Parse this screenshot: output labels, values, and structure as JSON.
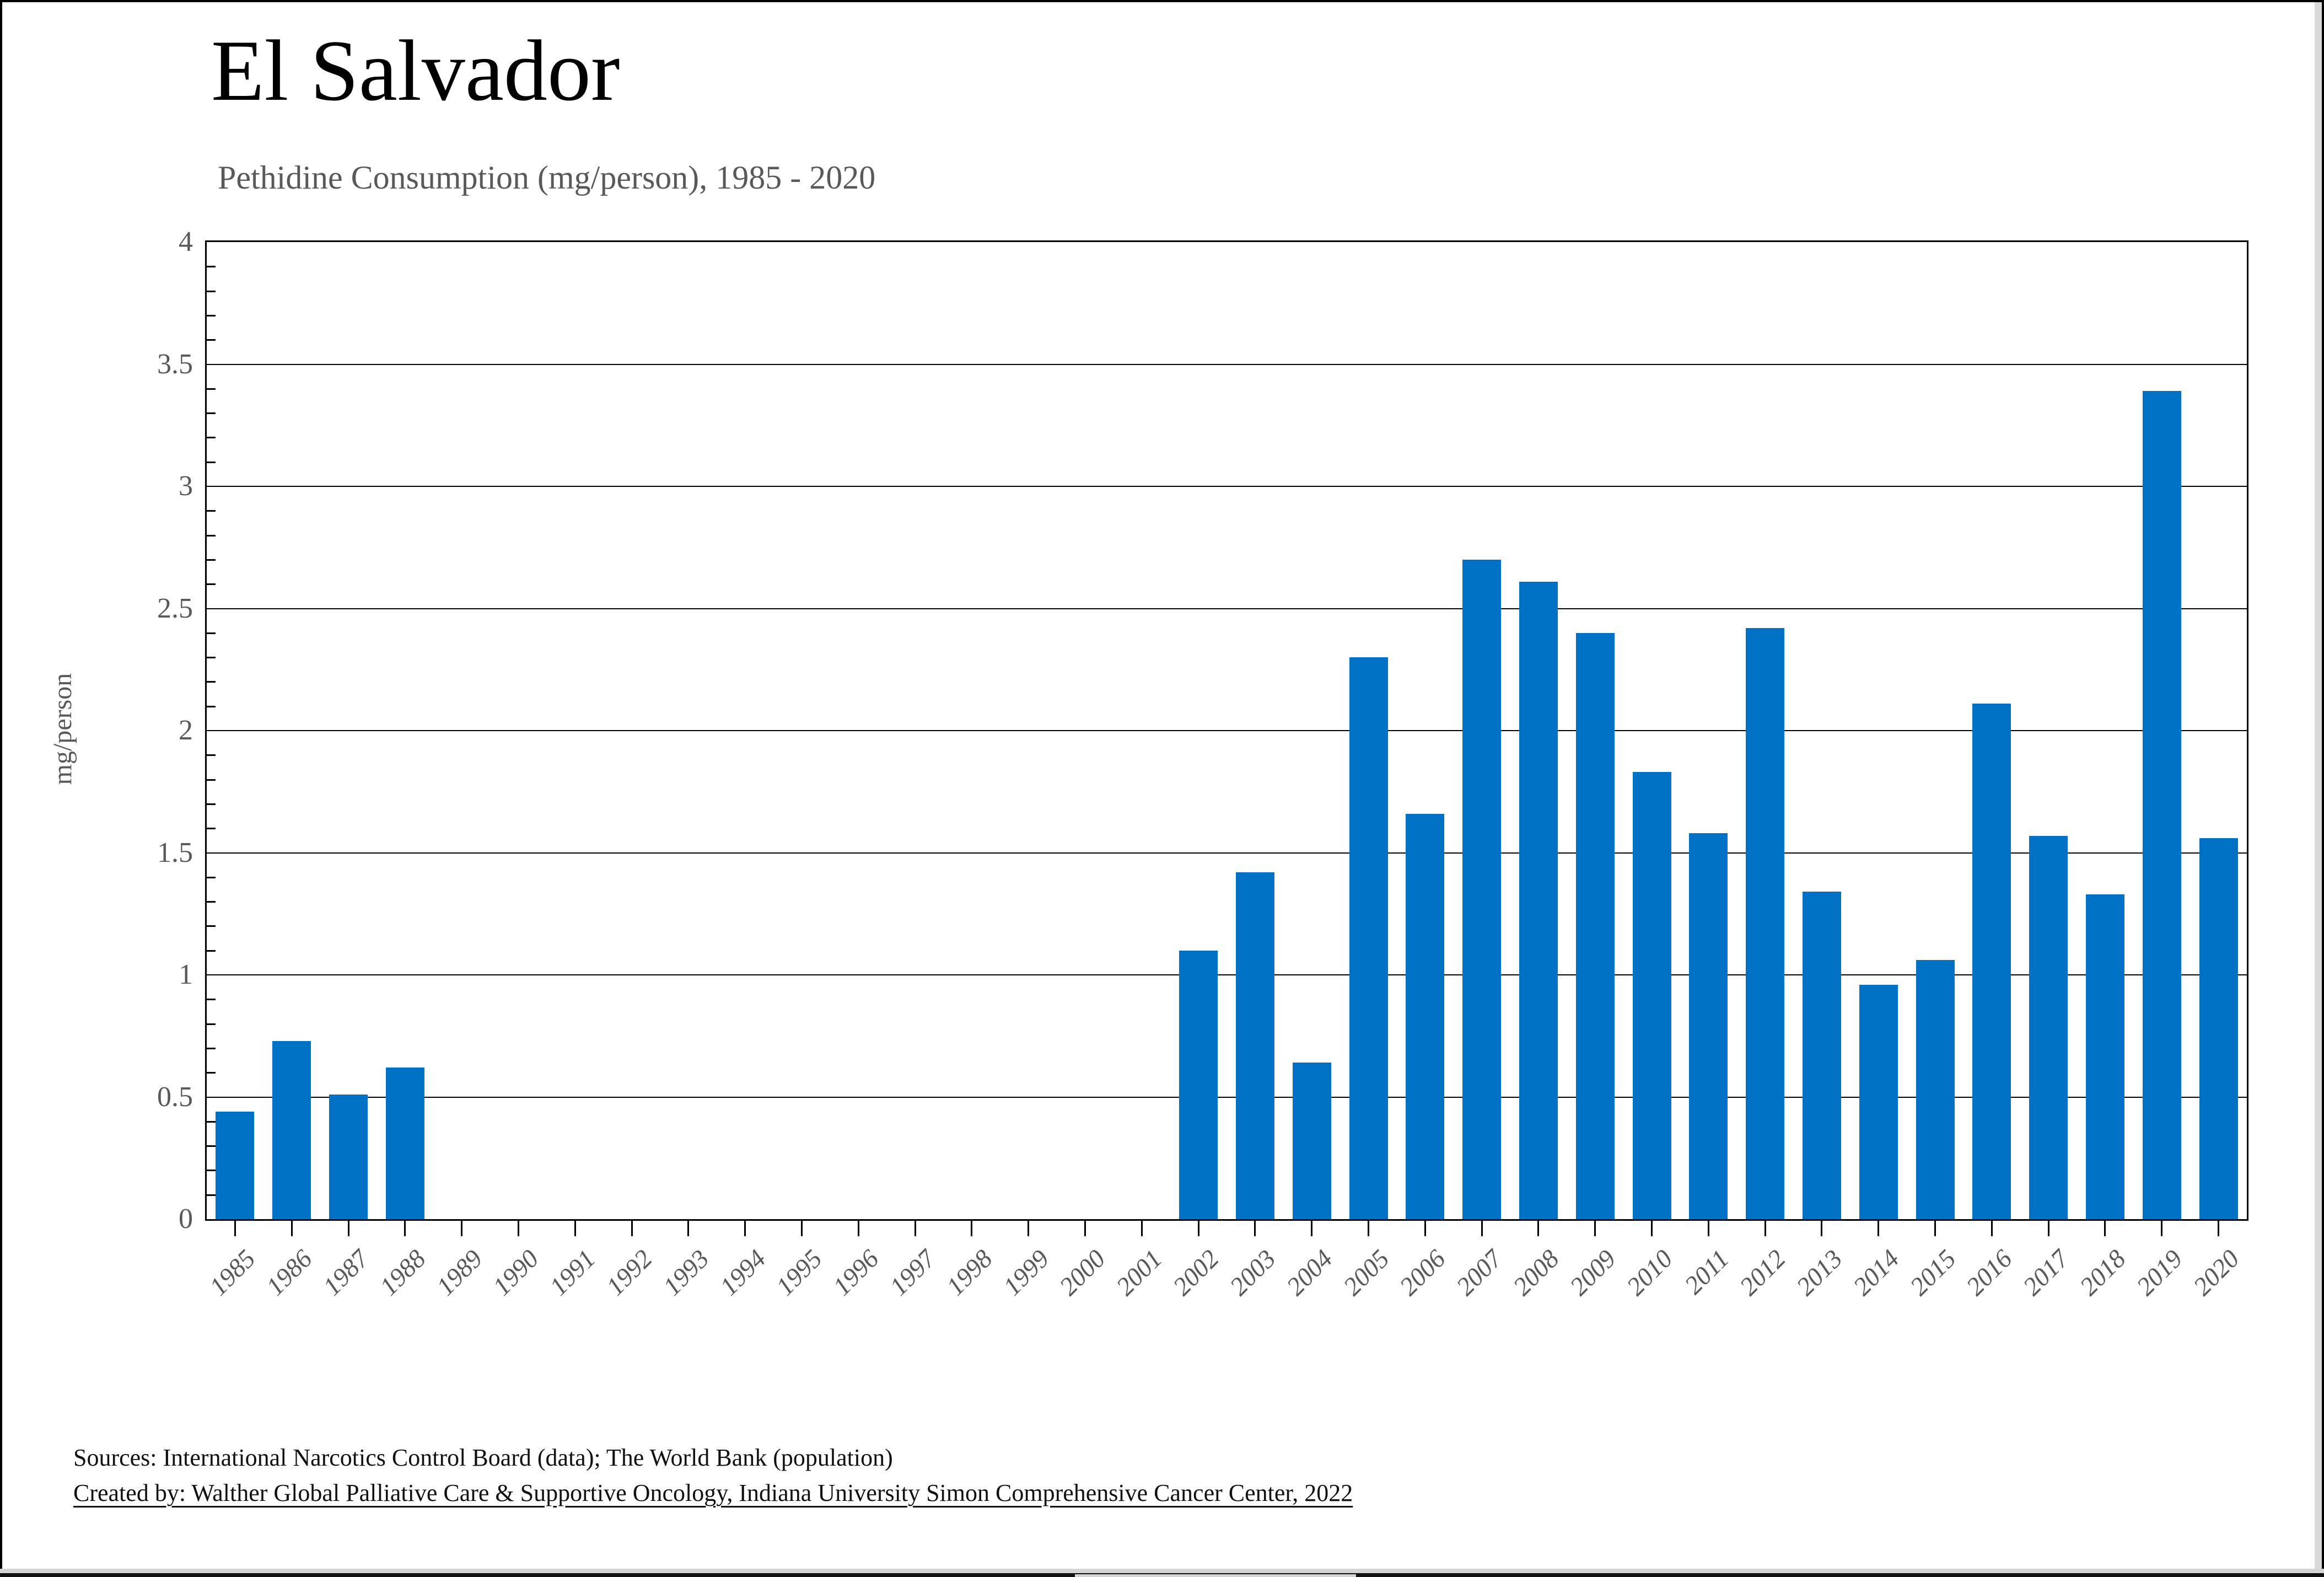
{
  "page": {
    "background": "#ffffff",
    "frame_color": "#000000",
    "chrome": {
      "right_scrollbar_track": "#d9d9d9",
      "bottom_strip_gray": "#d4d4d4",
      "bottom_strip_black": "#111111",
      "bottom_thumb": "#d4d4d4"
    }
  },
  "chart_data": {
    "type": "bar",
    "title": "El Salvador",
    "subtitle": "Pethidine Consumption (mg/person), 1985 - 2020",
    "xlabel": "",
    "ylabel": "mg/person",
    "ylim": [
      0,
      4
    ],
    "ytick_step": 0.5,
    "ytick_labels": [
      "0",
      "0.5",
      "1",
      "1.5",
      "2",
      "2.5",
      "3",
      "3.5",
      "4"
    ],
    "grid": "horizontal",
    "legend": "none",
    "bar_color": "#0072C6",
    "categories": [
      "1985",
      "1986",
      "1987",
      "1988",
      "1989",
      "1990",
      "1991",
      "1992",
      "1993",
      "1994",
      "1995",
      "1996",
      "1997",
      "1998",
      "1999",
      "2000",
      "2001",
      "2002",
      "2003",
      "2004",
      "2005",
      "2006",
      "2007",
      "2008",
      "2009",
      "2010",
      "2011",
      "2012",
      "2013",
      "2014",
      "2015",
      "2016",
      "2017",
      "2018",
      "2019",
      "2020"
    ],
    "values": [
      0.44,
      0.73,
      0.51,
      0.62,
      0,
      0,
      0,
      0,
      0,
      0,
      0,
      0,
      0,
      0,
      0,
      0,
      0,
      1.1,
      1.42,
      0.64,
      2.3,
      1.66,
      2.7,
      2.61,
      2.4,
      1.83,
      1.58,
      2.42,
      1.34,
      0.96,
      1.06,
      2.11,
      1.57,
      1.33,
      3.39,
      1.56
    ]
  },
  "footer": {
    "lines": [
      "Sources: International Narcotics Control Board (data); The World Bank (population)",
      "Created by: Walther Global Palliative Care & Supportive Oncology, Indiana University Simon Comprehensive Cancer Center, 2022"
    ]
  }
}
